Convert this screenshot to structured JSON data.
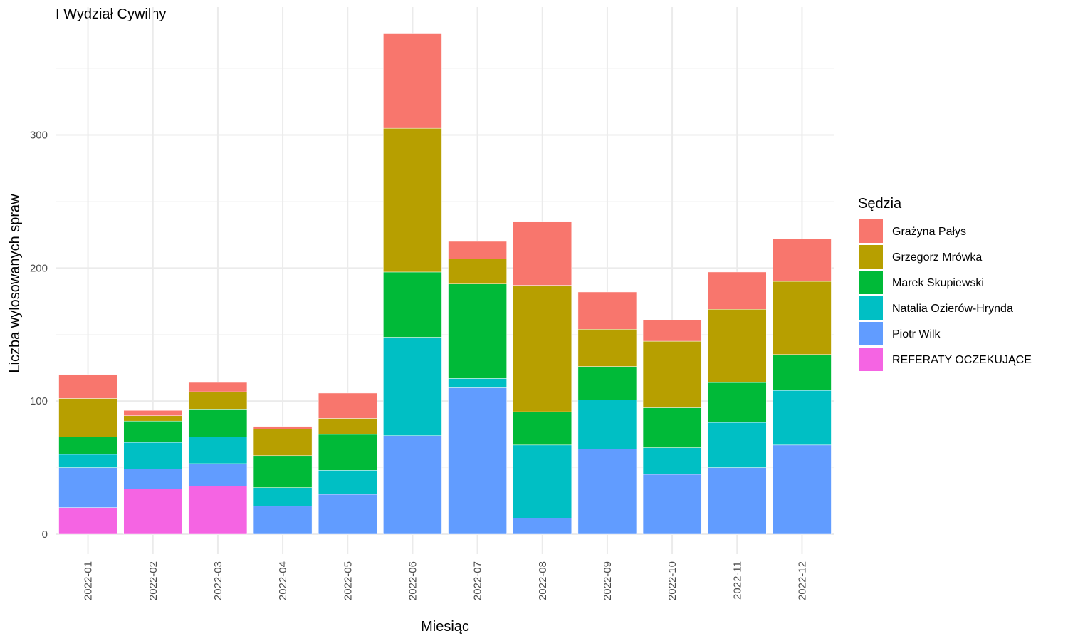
{
  "chart_data": {
    "type": "bar",
    "stacked": true,
    "title": "I Wydział Cywilny",
    "xlabel": "Miesiąc",
    "ylabel": "Liczba wylosowanych spraw",
    "ylim": [
      0,
      380
    ],
    "yticks": [
      0,
      100,
      200,
      300
    ],
    "grid": true,
    "legend": {
      "title": "Sędzia",
      "position": "right"
    },
    "categories": [
      "2022-01",
      "2022-02",
      "2022-03",
      "2022-04",
      "2022-05",
      "2022-06",
      "2022-07",
      "2022-08",
      "2022-09",
      "2022-10",
      "2022-11",
      "2022-12"
    ],
    "series": [
      {
        "name": "Grażyna Pałys",
        "color": "#F8766D",
        "values": [
          18,
          4,
          7,
          2,
          19,
          71,
          13,
          48,
          28,
          16,
          28,
          32
        ]
      },
      {
        "name": "Grzegorz Mrówka",
        "color": "#B79F00",
        "values": [
          29,
          4,
          13,
          20,
          12,
          108,
          19,
          95,
          28,
          50,
          55,
          55
        ]
      },
      {
        "name": "Marek Skupiewski",
        "color": "#00BA38",
        "values": [
          13,
          16,
          21,
          24,
          27,
          49,
          71,
          25,
          25,
          30,
          30,
          27
        ]
      },
      {
        "name": "Natalia Ozierów-Hrynda",
        "color": "#00BFC4",
        "values": [
          10,
          20,
          20,
          14,
          18,
          74,
          7,
          55,
          37,
          20,
          34,
          41
        ]
      },
      {
        "name": "Piotr Wilk",
        "color": "#619CFF",
        "values": [
          30,
          15,
          17,
          21,
          30,
          74,
          110,
          12,
          64,
          45,
          50,
          67
        ]
      },
      {
        "name": "REFERATY OCZEKUJĄCE",
        "color": "#F564E3",
        "values": [
          20,
          34,
          36,
          0,
          0,
          0,
          0,
          0,
          0,
          0,
          0,
          0
        ]
      }
    ]
  }
}
